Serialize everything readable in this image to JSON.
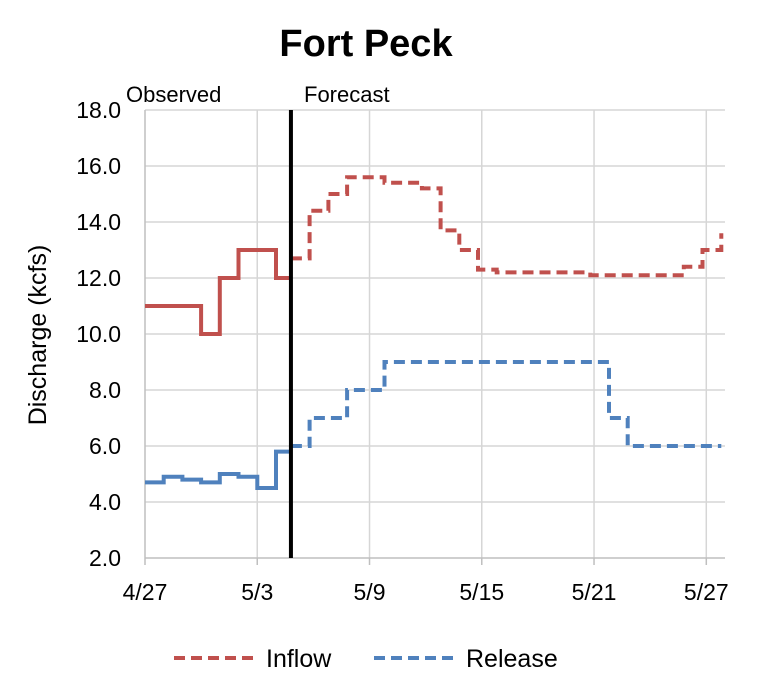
{
  "chart_data": {
    "type": "line",
    "title": "Fort Peck",
    "ylabel": "Discharge (kcfs)",
    "xlabel": "",
    "ylim": [
      2.0,
      18.0
    ],
    "yticks": [
      "2.0",
      "4.0",
      "6.0",
      "8.0",
      "10.0",
      "12.0",
      "14.0",
      "16.0",
      "18.0"
    ],
    "xlim": [
      0,
      31
    ],
    "xticks": [
      {
        "x": 0,
        "label": "4/27"
      },
      {
        "x": 6,
        "label": "5/3"
      },
      {
        "x": 12,
        "label": "5/9"
      },
      {
        "x": 18,
        "label": "5/15"
      },
      {
        "x": 24,
        "label": "5/21"
      },
      {
        "x": 30,
        "label": "5/27"
      }
    ],
    "grid": true,
    "divider": {
      "x": 7.8,
      "left_label": "Observed",
      "right_label": "Forecast"
    },
    "legend": {
      "position": "bottom",
      "entries": [
        "Inflow",
        "Release"
      ]
    },
    "series": [
      {
        "name": "Inflow",
        "color": "#c0504d",
        "observed": [
          [
            0,
            11.0
          ],
          [
            3,
            11.0
          ],
          [
            3,
            10.0
          ],
          [
            4,
            10.0
          ],
          [
            4,
            12.0
          ],
          [
            5,
            12.0
          ],
          [
            5,
            13.0
          ],
          [
            7,
            13.0
          ],
          [
            7,
            12.0
          ],
          [
            7.8,
            12.0
          ]
        ],
        "forecast": [
          [
            7.8,
            12.7
          ],
          [
            8.8,
            12.7
          ],
          [
            8.8,
            14.4
          ],
          [
            9.8,
            14.4
          ],
          [
            9.8,
            15.0
          ],
          [
            10.8,
            15.0
          ],
          [
            10.8,
            15.6
          ],
          [
            12.8,
            15.6
          ],
          [
            12.8,
            15.4
          ],
          [
            14.8,
            15.4
          ],
          [
            14.8,
            15.2
          ],
          [
            15.8,
            15.2
          ],
          [
            15.8,
            13.7
          ],
          [
            16.8,
            13.7
          ],
          [
            16.8,
            13.0
          ],
          [
            17.8,
            13.0
          ],
          [
            17.8,
            12.3
          ],
          [
            18.8,
            12.3
          ],
          [
            18.8,
            12.2
          ],
          [
            23.8,
            12.2
          ],
          [
            23.8,
            12.1
          ],
          [
            28.8,
            12.1
          ],
          [
            28.8,
            12.4
          ],
          [
            29.8,
            12.4
          ],
          [
            29.8,
            13.0
          ],
          [
            30.8,
            13.0
          ],
          [
            30.8,
            13.6
          ]
        ]
      },
      {
        "name": "Release",
        "color": "#4f81bd",
        "observed": [
          [
            0,
            4.7
          ],
          [
            1,
            4.7
          ],
          [
            1,
            4.9
          ],
          [
            2,
            4.9
          ],
          [
            2,
            4.8
          ],
          [
            3,
            4.8
          ],
          [
            3,
            4.7
          ],
          [
            4,
            4.7
          ],
          [
            4,
            5.0
          ],
          [
            5,
            5.0
          ],
          [
            5,
            4.9
          ],
          [
            6,
            4.9
          ],
          [
            6,
            4.5
          ],
          [
            7,
            4.5
          ],
          [
            7,
            5.8
          ],
          [
            7.8,
            5.8
          ]
        ],
        "forecast": [
          [
            7.8,
            6.0
          ],
          [
            8.8,
            6.0
          ],
          [
            8.8,
            7.0
          ],
          [
            10.8,
            7.0
          ],
          [
            10.8,
            8.0
          ],
          [
            12.8,
            8.0
          ],
          [
            12.8,
            9.0
          ],
          [
            24.8,
            9.0
          ],
          [
            24.8,
            7.0
          ],
          [
            25.8,
            7.0
          ],
          [
            25.8,
            6.0
          ],
          [
            30.8,
            6.0
          ]
        ]
      }
    ]
  }
}
